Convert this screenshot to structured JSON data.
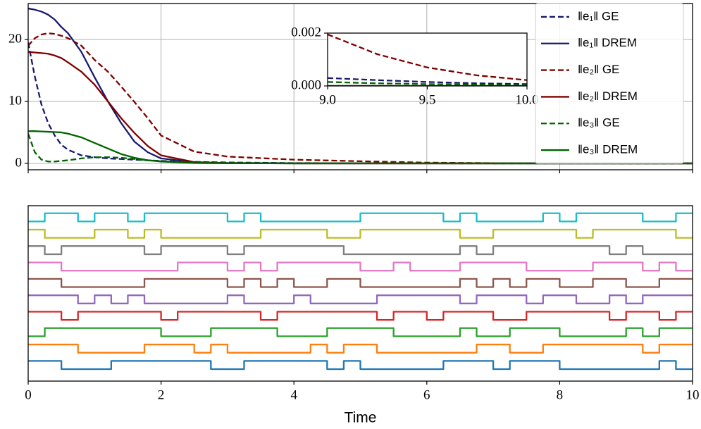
{
  "chart_data": [
    {
      "type": "line",
      "x": [
        0,
        0.1,
        0.2,
        0.3,
        0.4,
        0.5,
        0.6,
        0.8,
        1,
        1.2,
        1.4,
        1.6,
        1.8,
        2,
        2.5,
        3,
        4,
        5,
        6,
        7,
        8,
        9,
        9.25,
        9.5,
        9.75,
        10
      ],
      "xlim": [
        0,
        10
      ],
      "xticks": [
        0,
        2,
        4,
        6,
        8,
        10
      ],
      "ylim": [
        -1.03,
        25.8
      ],
      "yticks": [
        0,
        10,
        20
      ],
      "grid": true,
      "legend": "upper right",
      "series": [
        {
          "name": "‖e₁‖ GE",
          "color": "#191970",
          "linestyle": "dashed",
          "values": [
            19.5,
            14,
            9.5,
            6.5,
            4.5,
            3,
            2.2,
            1.3,
            1.0,
            0.8,
            0.7,
            0.6,
            0.5,
            0.4,
            0.25,
            0.15,
            0.05,
            0.02,
            0.008,
            0.003,
            0.001,
            0.0003,
            0.00022,
            0.00015,
            0.0001,
            7e-05
          ]
        },
        {
          "name": "‖e₁‖ DREM",
          "color": "#191970",
          "linestyle": "solid",
          "values": [
            25,
            24.8,
            24.5,
            24,
            23.2,
            22,
            21,
            18,
            13.9,
            10,
            6.5,
            3.5,
            1.8,
            0.8,
            0.2,
            0.05,
            0,
            0,
            0,
            0,
            0,
            0,
            0,
            0,
            0,
            0
          ]
        },
        {
          "name": "‖e₂‖ GE",
          "color": "#800000",
          "linestyle": "dashed",
          "values": [
            19,
            20.2,
            20.8,
            21,
            20.9,
            20.6,
            20.2,
            19,
            16.7,
            14.8,
            12.4,
            9.9,
            7.3,
            4.5,
            1.9,
            1.1,
            0.6,
            0.35,
            0.12,
            0.04,
            0.008,
            0.00195,
            0.0012,
            0.0007,
            0.0004,
            0.00022
          ]
        },
        {
          "name": "‖e₂‖ DREM",
          "color": "#800000",
          "linestyle": "solid",
          "values": [
            18,
            17.9,
            17.8,
            17.7,
            17.4,
            17,
            16.3,
            14.8,
            12.7,
            10,
            7.3,
            4.9,
            2.8,
            1.3,
            0.2,
            0.02,
            0,
            0,
            0,
            0,
            0,
            0,
            0,
            0,
            0,
            0
          ]
        },
        {
          "name": "‖e₃‖ GE",
          "color": "#006400",
          "linestyle": "dashed",
          "values": [
            4.8,
            1.8,
            0.6,
            0.3,
            0.3,
            0.4,
            0.5,
            0.8,
            1.0,
            1.0,
            0.9,
            0.7,
            0.5,
            0.35,
            0.15,
            0.08,
            0.03,
            0.01,
            0.004,
            0.001,
            0.0005,
            0.00015,
            0.0001,
            7e-05,
            5e-05,
            3e-05
          ]
        },
        {
          "name": "‖e₃‖ DREM",
          "color": "#006400",
          "linestyle": "solid",
          "values": [
            5.2,
            5.2,
            5.15,
            5.1,
            5.05,
            5,
            4.8,
            4.2,
            3.3,
            2.4,
            1.5,
            0.9,
            0.5,
            0.3,
            0.05,
            0.01,
            0,
            0,
            0,
            0,
            0,
            0,
            0,
            0,
            0,
            0
          ]
        }
      ],
      "inset": {
        "xlim": [
          9,
          10
        ],
        "ylim": [
          0,
          0.002
        ],
        "xticks": [
          {
            "value": 9,
            "label": "9.0"
          },
          {
            "value": 9.5,
            "label": "9.5"
          },
          {
            "value": 10,
            "label": "10.0"
          }
        ],
        "yticks": [
          {
            "value": 0,
            "label": "0.000"
          },
          {
            "value": 0.002,
            "label": "0.002"
          }
        ]
      }
    },
    {
      "type": "step",
      "xlabel": "Time",
      "xlim": [
        0,
        10
      ],
      "xticks": [
        0,
        2,
        4,
        6,
        8,
        10
      ],
      "ylim": [
        -0.73,
        9.96
      ],
      "series": [
        {
          "color": "#1f77b4",
          "x": [
            0,
            0.5,
            1.25,
            2.75,
            3.25,
            4.5,
            4.75,
            5,
            6.25,
            7,
            7.25,
            8,
            9.5,
            9.75,
            10
          ],
          "values": [
            0.5,
            0,
            0.5,
            0,
            0.5,
            0,
            0.5,
            0,
            0.5,
            0,
            0.5,
            0,
            0.5,
            0,
            0
          ]
        },
        {
          "color": "#ff7f0e",
          "x": [
            0,
            0.75,
            1.75,
            2.5,
            2.75,
            3,
            4.25,
            4.5,
            4.75,
            5.25,
            6.75,
            7.25,
            7.75,
            9.25,
            9.5,
            10
          ],
          "values": [
            1.5,
            1,
            1.5,
            1,
            1.5,
            1,
            1.5,
            1,
            1.5,
            1,
            1.5,
            1,
            1.5,
            1,
            1.5,
            1.5
          ]
        },
        {
          "color": "#2ca02c",
          "x": [
            0,
            0.25,
            2,
            2.75,
            3.75,
            4.5,
            5.5,
            6.5,
            6.75,
            7.25,
            8,
            9,
            9.25,
            9.5,
            10
          ],
          "values": [
            2,
            2.5,
            2,
            2.5,
            2,
            2.5,
            2,
            2.5,
            2,
            2.5,
            2,
            2.5,
            2,
            2.5,
            2.5
          ]
        },
        {
          "color": "#d62728",
          "x": [
            0,
            0.5,
            0.75,
            2,
            2.25,
            3.5,
            3.75,
            5.25,
            5.5,
            6,
            6.25,
            7,
            7.5,
            8.75,
            9,
            9.5,
            9.75,
            10
          ],
          "values": [
            3.5,
            3,
            3.5,
            3,
            3.5,
            3,
            3.5,
            3,
            3.5,
            3,
            3.5,
            3,
            3.5,
            3,
            3.5,
            3,
            3.5,
            3.5
          ]
        },
        {
          "color": "#9467bd",
          "x": [
            0,
            0.75,
            1,
            1.25,
            1.5,
            1.75,
            3,
            3.25,
            4,
            4.25,
            5.25,
            6.5,
            6.75,
            7.5,
            7.75,
            8.25,
            8.75,
            9,
            9.25,
            10
          ],
          "values": [
            4.5,
            4,
            4.5,
            4,
            4.5,
            4,
            4.5,
            4,
            4.5,
            4,
            4.5,
            4,
            4.5,
            4,
            4.5,
            4,
            4.5,
            4,
            4.5,
            4.5
          ]
        },
        {
          "color": "#8c564b",
          "x": [
            0,
            0.5,
            1.75,
            3,
            3.25,
            3.5,
            3.75,
            4,
            4.5,
            5,
            6.5,
            6.75,
            7,
            7.25,
            7.5,
            8,
            8.5,
            9,
            9.5,
            10
          ],
          "values": [
            5.5,
            5,
            5.5,
            5,
            5.5,
            5,
            5.5,
            5,
            5.5,
            5,
            5.5,
            5,
            5.5,
            5,
            5.5,
            5,
            5.5,
            5,
            5.5,
            5.5
          ]
        },
        {
          "color": "#e377c2",
          "x": [
            0,
            0.5,
            2.25,
            3,
            3.25,
            3.5,
            3.75,
            5,
            5.5,
            5.75,
            6.5,
            7.5,
            8.5,
            9.25,
            9.5,
            9.75,
            10
          ],
          "values": [
            6.5,
            6,
            6.5,
            6,
            6.5,
            6,
            6.5,
            6,
            6.5,
            6,
            6.5,
            6,
            6.5,
            6,
            6.5,
            6,
            6
          ]
        },
        {
          "color": "#7f7f7f",
          "x": [
            0,
            0.25,
            0.5,
            1.75,
            2,
            3,
            3.25,
            4.75,
            6.5,
            6.75,
            7,
            8.75,
            9,
            9.25,
            10
          ],
          "values": [
            7.5,
            7,
            7.5,
            7,
            7.5,
            7,
            7.5,
            7,
            7.5,
            7,
            7.5,
            7,
            7.5,
            7,
            7
          ]
        },
        {
          "color": "#bcbd22",
          "x": [
            0,
            0.25,
            1,
            1.5,
            1.75,
            2,
            3.5,
            4.5,
            5,
            6.5,
            7,
            8.25,
            8.5,
            9.75,
            10
          ],
          "values": [
            8.5,
            8,
            8.5,
            8,
            8.5,
            8,
            8.5,
            8,
            8.5,
            8,
            8.5,
            8,
            8.5,
            8,
            8
          ]
        },
        {
          "color": "#17becf",
          "x": [
            0,
            0.25,
            0.75,
            1,
            1.5,
            1.75,
            3,
            3.25,
            3.5,
            5,
            6.25,
            6.5,
            6.75,
            7.75,
            8,
            8.25,
            9.25,
            9.75,
            10
          ],
          "values": [
            9,
            9.5,
            9,
            9.5,
            9,
            9.5,
            9,
            9.5,
            9,
            9.5,
            9,
            9.5,
            9,
            9.5,
            9,
            9.5,
            9,
            9.5,
            9.5
          ]
        }
      ]
    }
  ]
}
